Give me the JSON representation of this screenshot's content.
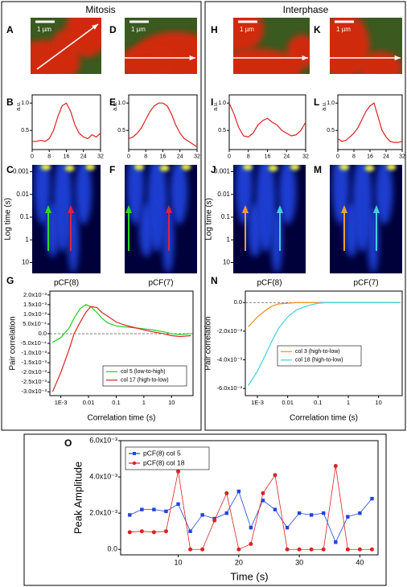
{
  "sections": [
    "Mitosis",
    "Interphase"
  ],
  "images": [
    {
      "panel": "A",
      "scale_bar": "1 µm"
    },
    {
      "panel": "D",
      "scale_bar": "1 µm"
    },
    {
      "panel": "H",
      "scale_bar": "1 µm"
    },
    {
      "panel": "K",
      "scale_bar": "1 µm"
    }
  ],
  "chart_data": [
    {
      "panel": "B",
      "type": "line",
      "ylabel": "a.u.",
      "x": [
        0,
        2,
        4,
        6,
        8,
        10,
        12,
        14,
        16,
        18,
        20,
        22,
        24,
        26,
        28,
        30,
        32
      ],
      "series": [
        {
          "color": "#e02020",
          "values": [
            0.3,
            0.3,
            0.32,
            0.3,
            0.35,
            0.5,
            0.75,
            0.95,
            1.0,
            0.85,
            0.6,
            0.45,
            0.38,
            0.35,
            0.42,
            0.38,
            0.45
          ]
        }
      ],
      "xlim": [
        0,
        32
      ],
      "xticks": [
        0,
        8,
        16,
        24,
        32
      ],
      "ylim": [
        0.15,
        1.15
      ],
      "yticks": [
        0.5,
        {
          "value": 1,
          "label": "1.0"
        }
      ]
    },
    {
      "panel": "E",
      "type": "line",
      "ylabel": "a.u.",
      "x": [
        0,
        2,
        4,
        6,
        8,
        10,
        12,
        14,
        16,
        18,
        20,
        22,
        24,
        26,
        28,
        30,
        32
      ],
      "series": [
        {
          "color": "#e02020",
          "values": [
            0.35,
            0.38,
            0.45,
            0.55,
            0.7,
            0.85,
            0.95,
            1.0,
            1.0,
            0.95,
            0.8,
            0.6,
            0.45,
            0.35,
            0.3,
            0.25,
            0.2
          ]
        }
      ],
      "xlim": [
        0,
        32
      ],
      "xticks": [
        0,
        8,
        16,
        24,
        32
      ],
      "ylim": [
        0.15,
        1.15
      ],
      "yticks": [
        0.5,
        {
          "value": 1,
          "label": "1.0"
        }
      ]
    },
    {
      "panel": "I",
      "type": "line",
      "ylabel": "a.u.",
      "x": [
        0,
        2,
        4,
        6,
        8,
        10,
        12,
        14,
        16,
        18,
        20,
        22,
        24,
        26,
        28,
        30,
        32
      ],
      "series": [
        {
          "color": "#e02020",
          "values": [
            1.0,
            0.8,
            0.55,
            0.4,
            0.38,
            0.45,
            0.6,
            0.68,
            0.72,
            0.65,
            0.6,
            0.5,
            0.45,
            0.4,
            0.42,
            0.5,
            0.65
          ]
        }
      ],
      "xlim": [
        0,
        32
      ],
      "xticks": [
        0,
        8,
        16,
        24,
        32
      ],
      "ylim": [
        0.15,
        1.15
      ],
      "yticks": [
        0.5,
        {
          "value": 1,
          "label": "1.0"
        }
      ]
    },
    {
      "panel": "L",
      "type": "line",
      "ylabel": "a.u.",
      "x": [
        0,
        2,
        4,
        6,
        8,
        10,
        12,
        14,
        16,
        18,
        20,
        22,
        24,
        26,
        28,
        30,
        32
      ],
      "series": [
        {
          "color": "#e02020",
          "values": [
            0.35,
            0.3,
            0.32,
            0.38,
            0.45,
            0.55,
            0.7,
            0.85,
            0.95,
            1.0,
            0.75,
            0.5,
            0.38,
            0.3,
            0.28,
            0.28,
            0.3
          ]
        }
      ],
      "xlim": [
        0,
        32
      ],
      "xticks": [
        0,
        8,
        16,
        24,
        32
      ],
      "ylim": [
        0.15,
        1.15
      ],
      "yticks": [
        0.5,
        {
          "value": 1,
          "label": "1.0"
        }
      ]
    },
    {
      "panel": "C",
      "type": "heatmap",
      "ylabel": "Log time (s)",
      "xlabel": "pCF(8)",
      "ylog": true,
      "ylim": [
        0.0005,
        30
      ],
      "yticks": [
        0.001,
        0.01,
        0.1,
        1,
        10
      ]
    },
    {
      "panel": "F",
      "type": "heatmap",
      "xlabel": "pCF(7)"
    },
    {
      "panel": "J",
      "type": "heatmap",
      "ylabel": "Log time (s)",
      "xlabel": "pCF(8)",
      "ylog": true,
      "ylim": [
        0.0005,
        30
      ],
      "yticks": [
        0.001,
        0.01,
        0.1,
        1,
        10
      ]
    },
    {
      "panel": "M",
      "type": "heatmap",
      "xlabel": "pCF(7)"
    },
    {
      "panel": "G",
      "type": "line",
      "xlabel": "Correlation time (s)",
      "ylabel": "Pair correlation",
      "xlog": true,
      "zero_line": true,
      "legend": "lower right",
      "x": [
        0.0005,
        0.001,
        0.002,
        0.003,
        0.005,
        0.008,
        0.012,
        0.02,
        0.03,
        0.05,
        0.1,
        0.2,
        0.5,
        1,
        2,
        5,
        10,
        20,
        50
      ],
      "series": [
        {
          "name": "col 5 (low-to-high)",
          "color": "#22cc22",
          "values": [
            -0.00045,
            -0.0002,
            0.0003,
            0.0008,
            0.0013,
            0.0015,
            0.0014,
            0.0011,
            0.0008,
            0.00055,
            0.0004,
            0.00035,
            0.0003,
            0.00025,
            0.0002,
            0.0001,
            0,
            -5e-05,
            0
          ]
        },
        {
          "name": "col 17 (high-to-low)",
          "color": "#dd2222",
          "values": [
            -0.003,
            -0.002,
            -0.0008,
            0,
            0.0006,
            0.0011,
            0.0014,
            0.00135,
            0.0011,
            0.0009,
            0.0006,
            0.00045,
            0.0003,
            0.0002,
            0.0001,
            0,
            -0.0001,
            -0.00015,
            -0.0001
          ]
        }
      ],
      "xlim": [
        0.0004,
        60
      ],
      "xticks": [
        {
          "value": 0.001,
          "label": "1E-3"
        },
        0.01,
        0.1,
        1,
        10
      ],
      "ylim": [
        -0.0032,
        0.0022
      ],
      "yticks": [
        {
          "value": -0.003,
          "label": "-3.0x10⁻³"
        },
        {
          "value": -0.0025,
          "label": "-2.5x10⁻³"
        },
        {
          "value": -0.002,
          "label": "-2.0x10⁻³"
        },
        {
          "value": -0.0015,
          "label": "-1.5x10⁻³"
        },
        {
          "value": -0.001,
          "label": "-1.0x10⁻³"
        },
        {
          "value": -0.0005,
          "label": "-5.0x10⁻⁴"
        },
        {
          "value": 0,
          "label": "0.0"
        },
        {
          "value": 0.0005,
          "label": "5.0x10⁻⁴"
        },
        {
          "value": 0.001,
          "label": "1.0x10⁻³"
        },
        {
          "value": 0.0015,
          "label": "1.5x10⁻³"
        },
        {
          "value": 0.002,
          "label": "2.0x10⁻³"
        }
      ]
    },
    {
      "panel": "N",
      "type": "line",
      "xlabel": "Correlation time (s)",
      "ylabel": "Pair correlation",
      "xlog": true,
      "zero_line": true,
      "legend": "right",
      "x": [
        0.0005,
        0.001,
        0.002,
        0.003,
        0.005,
        0.01,
        0.02,
        0.05,
        0.1,
        0.2,
        0.5,
        1,
        2,
        5,
        10,
        20,
        50
      ],
      "series": [
        {
          "name": "col 3 (high-to-low)",
          "color": "#f08c1e",
          "values": [
            -0.0017,
            -0.001,
            -0.0005,
            -0.00025,
            -0.0001,
            -5e-05,
            0,
            0,
            0,
            0,
            0,
            0,
            0,
            0,
            0,
            0,
            0
          ]
        },
        {
          "name": "col 18 (high-to-low)",
          "color": "#40d0e0",
          "values": [
            -0.0058,
            -0.0048,
            -0.0035,
            -0.0027,
            -0.0018,
            -0.001,
            -0.0005,
            -0.0002,
            -5e-05,
            0,
            0,
            0,
            0,
            0,
            0,
            0,
            0
          ]
        }
      ],
      "xlim": [
        0.0004,
        60
      ],
      "xticks": [
        {
          "value": 0.001,
          "label": "1E-3"
        },
        0.01,
        0.1,
        1,
        10
      ],
      "ylim": [
        -0.0065,
        0.0008
      ],
      "yticks": [
        {
          "value": -0.006,
          "label": "-6.0x10⁻³"
        },
        {
          "value": -0.004,
          "label": "-4.0x10⁻³"
        },
        {
          "value": -0.002,
          "label": "-2.0x10⁻³"
        },
        {
          "value": 0,
          "label": "0.0"
        }
      ]
    },
    {
      "panel": "O",
      "type": "line",
      "xlabel": "Time (s)",
      "ylabel": "Peak Amplitude",
      "legend": "upper left",
      "x": [
        2,
        4,
        6,
        8,
        10,
        12,
        14,
        16,
        18,
        20,
        22,
        24,
        26,
        28,
        30,
        32,
        34,
        36,
        38,
        40,
        42
      ],
      "series": [
        {
          "name": "pCF(8) col 5",
          "color": "#2244dd",
          "marker": "square",
          "values": [
            0.0019,
            0.0022,
            0.0022,
            0.0021,
            0.0025,
            0.001,
            0.0019,
            0.0017,
            0.002,
            0.0032,
            0.0012,
            0.0027,
            0.0022,
            0.0012,
            0.002,
            0.0019,
            0.002,
            0.0004,
            0.0018,
            0.002,
            0.0028
          ]
        },
        {
          "name": "pCF(8) col 18",
          "color": "#dd2222",
          "marker": "circle",
          "values": [
            0.00095,
            0.001,
            0.00095,
            0.001,
            0.0043,
            0,
            0,
            0.0016,
            0.0031,
            0,
            0.0003,
            0.0031,
            0.0041,
            0,
            0,
            0,
            0,
            0.0046,
            0,
            0,
            0
          ]
        }
      ],
      "xlim": [
        0.5,
        43
      ],
      "xticks": [
        10,
        20,
        30,
        40
      ],
      "ylim": [
        -0.0003,
        0.006
      ],
      "yticks": [
        {
          "value": 0,
          "label": "0.0"
        },
        {
          "value": 0.002,
          "label": "2.0x10⁻³"
        },
        {
          "value": 0.004,
          "label": "4.0x10⁻³"
        },
        {
          "value": 0.006,
          "label": "6.0x10⁻³"
        }
      ]
    }
  ]
}
